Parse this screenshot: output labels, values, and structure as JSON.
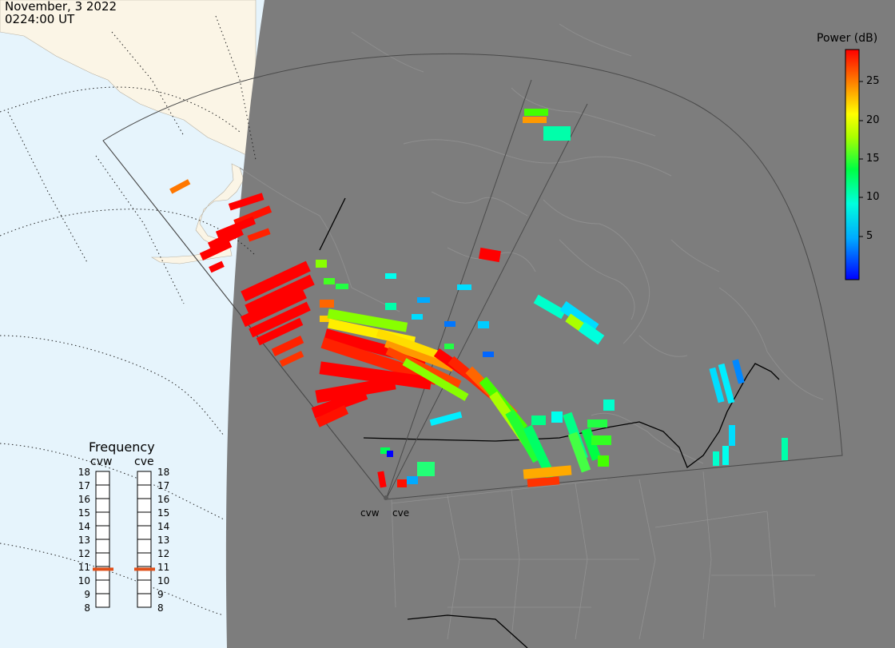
{
  "header": {
    "date": "November, 3 2022",
    "time": "0224:00 UT"
  },
  "colorbar": {
    "title": "Power (dB)",
    "ticks": [
      "25",
      "20",
      "15",
      "10",
      "5"
    ],
    "min": 0,
    "max": 30
  },
  "frequency": {
    "title": "Frequency",
    "radars": [
      {
        "label": "cvw",
        "value_mhz": 10.8,
        "color": "#e0501a"
      },
      {
        "label": "cve",
        "value_mhz": 10.8,
        "color": "#e0501a"
      }
    ],
    "ticks": [
      "18",
      "17",
      "16",
      "15",
      "14",
      "13",
      "12",
      "11",
      "10",
      "9",
      "8"
    ]
  },
  "sites": [
    {
      "label": "cvw"
    },
    {
      "label": "cve"
    }
  ],
  "colors": {
    "ocean": "#e6f4fc",
    "land_day": "#fbf5e6",
    "night": "#7d7d7d",
    "coastline_night": "#8e8e8e",
    "border": "#000000"
  }
}
